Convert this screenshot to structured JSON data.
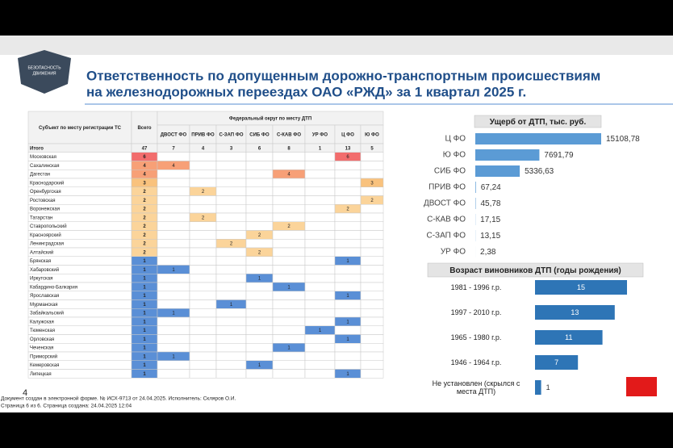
{
  "header": {
    "title_lines": [
      "Ответственность по допущенным дорожно-транспортным происшествиям",
      "на железнодорожных переездах ОАО «РЖД» за 1 квартал 2025 г."
    ],
    "logo_text": [
      "БЕЗОПАСНОСТЬ",
      "ДВИЖЕНИЯ"
    ]
  },
  "table": {
    "columns": [
      "Субъект по месту регистрации ТС",
      "Всего"
    ],
    "group_header": "Федеральный округ по месту ДТП",
    "districts": [
      "ДВОСТ ФО",
      "ПРИВ ФО",
      "С-ЗАП ФО",
      "СИБ ФО",
      "С-КАВ ФО",
      "УР ФО",
      "Ц ФО",
      "Ю ФО"
    ],
    "total_row": {
      "label": "Итого",
      "total": 47,
      "values": [
        7,
        4,
        3,
        6,
        8,
        1,
        13,
        5
      ]
    },
    "rows": [
      {
        "name": "Московская",
        "total": 6,
        "values": [
          null,
          null,
          null,
          null,
          null,
          null,
          6,
          null
        ]
      },
      {
        "name": "Сахалинская",
        "total": 4,
        "values": [
          4,
          null,
          null,
          null,
          null,
          null,
          null,
          null
        ]
      },
      {
        "name": "Дагестан",
        "total": 4,
        "values": [
          null,
          null,
          null,
          null,
          4,
          null,
          null,
          null
        ]
      },
      {
        "name": "Краснодарский",
        "total": 3,
        "values": [
          null,
          null,
          null,
          null,
          null,
          null,
          null,
          3
        ]
      },
      {
        "name": "Оренбургская",
        "total": 2,
        "values": [
          null,
          2,
          null,
          null,
          null,
          null,
          null,
          null
        ]
      },
      {
        "name": "Ростовская",
        "total": 2,
        "values": [
          null,
          null,
          null,
          null,
          null,
          null,
          null,
          2
        ]
      },
      {
        "name": "Воронежская",
        "total": 2,
        "values": [
          null,
          null,
          null,
          null,
          null,
          null,
          2,
          null
        ]
      },
      {
        "name": "Татарстан",
        "total": 2,
        "values": [
          null,
          2,
          null,
          null,
          null,
          null,
          null,
          null
        ]
      },
      {
        "name": "Ставропольский",
        "total": 2,
        "values": [
          null,
          null,
          null,
          null,
          2,
          null,
          null,
          null
        ]
      },
      {
        "name": "Красноярский",
        "total": 2,
        "values": [
          null,
          null,
          null,
          2,
          null,
          null,
          null,
          null
        ]
      },
      {
        "name": "Ленинградская",
        "total": 2,
        "values": [
          null,
          null,
          2,
          null,
          null,
          null,
          null,
          null
        ]
      },
      {
        "name": "Алтайский",
        "total": 2,
        "values": [
          null,
          null,
          null,
          2,
          null,
          null,
          null,
          null
        ]
      },
      {
        "name": "Брянская",
        "total": 1,
        "values": [
          null,
          null,
          null,
          null,
          null,
          null,
          1,
          null
        ]
      },
      {
        "name": "Хабаровский",
        "total": 1,
        "values": [
          1,
          null,
          null,
          null,
          null,
          null,
          null,
          null
        ]
      },
      {
        "name": "Иркутская",
        "total": 1,
        "values": [
          null,
          null,
          null,
          1,
          null,
          null,
          null,
          null
        ]
      },
      {
        "name": "Кабардино-Балкария",
        "total": 1,
        "values": [
          null,
          null,
          null,
          null,
          1,
          null,
          null,
          null
        ]
      },
      {
        "name": "Ярославская",
        "total": 1,
        "values": [
          null,
          null,
          null,
          null,
          null,
          null,
          1,
          null
        ]
      },
      {
        "name": "Мурманская",
        "total": 1,
        "values": [
          null,
          null,
          1,
          null,
          null,
          null,
          null,
          null
        ]
      },
      {
        "name": "Забайкальский",
        "total": 1,
        "values": [
          1,
          null,
          null,
          null,
          null,
          null,
          null,
          null
        ]
      },
      {
        "name": "Калужская",
        "total": 1,
        "values": [
          null,
          null,
          null,
          null,
          null,
          null,
          1,
          null
        ]
      },
      {
        "name": "Тюменская",
        "total": 1,
        "values": [
          null,
          null,
          null,
          null,
          null,
          1,
          null,
          null
        ]
      },
      {
        "name": "Орловская",
        "total": 1,
        "values": [
          null,
          null,
          null,
          null,
          null,
          null,
          1,
          null
        ]
      },
      {
        "name": "Чеченская",
        "total": 1,
        "values": [
          null,
          null,
          null,
          null,
          1,
          null,
          null,
          null
        ]
      },
      {
        "name": "Приморский",
        "total": 1,
        "values": [
          1,
          null,
          null,
          null,
          null,
          null,
          null,
          null
        ]
      },
      {
        "name": "Кемеровская",
        "total": 1,
        "values": [
          null,
          null,
          null,
          1,
          null,
          null,
          null,
          null
        ]
      },
      {
        "name": "Липецкая",
        "total": 1,
        "values": [
          null,
          null,
          null,
          null,
          null,
          null,
          1,
          null
        ]
      }
    ]
  },
  "chart_data": [
    {
      "type": "bar",
      "orientation": "horizontal",
      "title": "Ущерб от ДТП, тыс. руб.",
      "categories": [
        "Ц ФО",
        "Ю ФО",
        "СИБ ФО",
        "ПРИВ ФО",
        "ДВОСТ ФО",
        "С-КАВ ФО",
        "С-ЗАП ФО",
        "УР ФО"
      ],
      "values": [
        15108.78,
        7691.79,
        5336.63,
        67.24,
        45.78,
        17.15,
        13.15,
        2.38
      ],
      "value_labels": [
        "15108,78",
        "7691,79",
        "5336,63",
        "67,24",
        "45,78",
        "17,15",
        "13,15",
        "2,38"
      ],
      "color": "#5b9bd5"
    },
    {
      "type": "bar",
      "orientation": "horizontal",
      "title": "Возраст виновников ДТП (годы рождения)",
      "categories": [
        "1981 - 1996 г.р.",
        "1997 - 2010 г.р.",
        "1965 - 1980 г.р.",
        "1946 - 1964 г.р.",
        "Не установлен (скрылся с места ДТП)"
      ],
      "values": [
        15,
        13,
        11,
        7,
        1
      ],
      "color": "#2e75b6"
    }
  ],
  "footer": {
    "page_number": 4,
    "lines": [
      "Документ создан в электронной форме. № ИСХ-9713 от 24.04.2025. Исполнитель: Скляров О.И.",
      "Страница 6 из 6. Страница создана: 24.04.2025 12:04"
    ]
  }
}
